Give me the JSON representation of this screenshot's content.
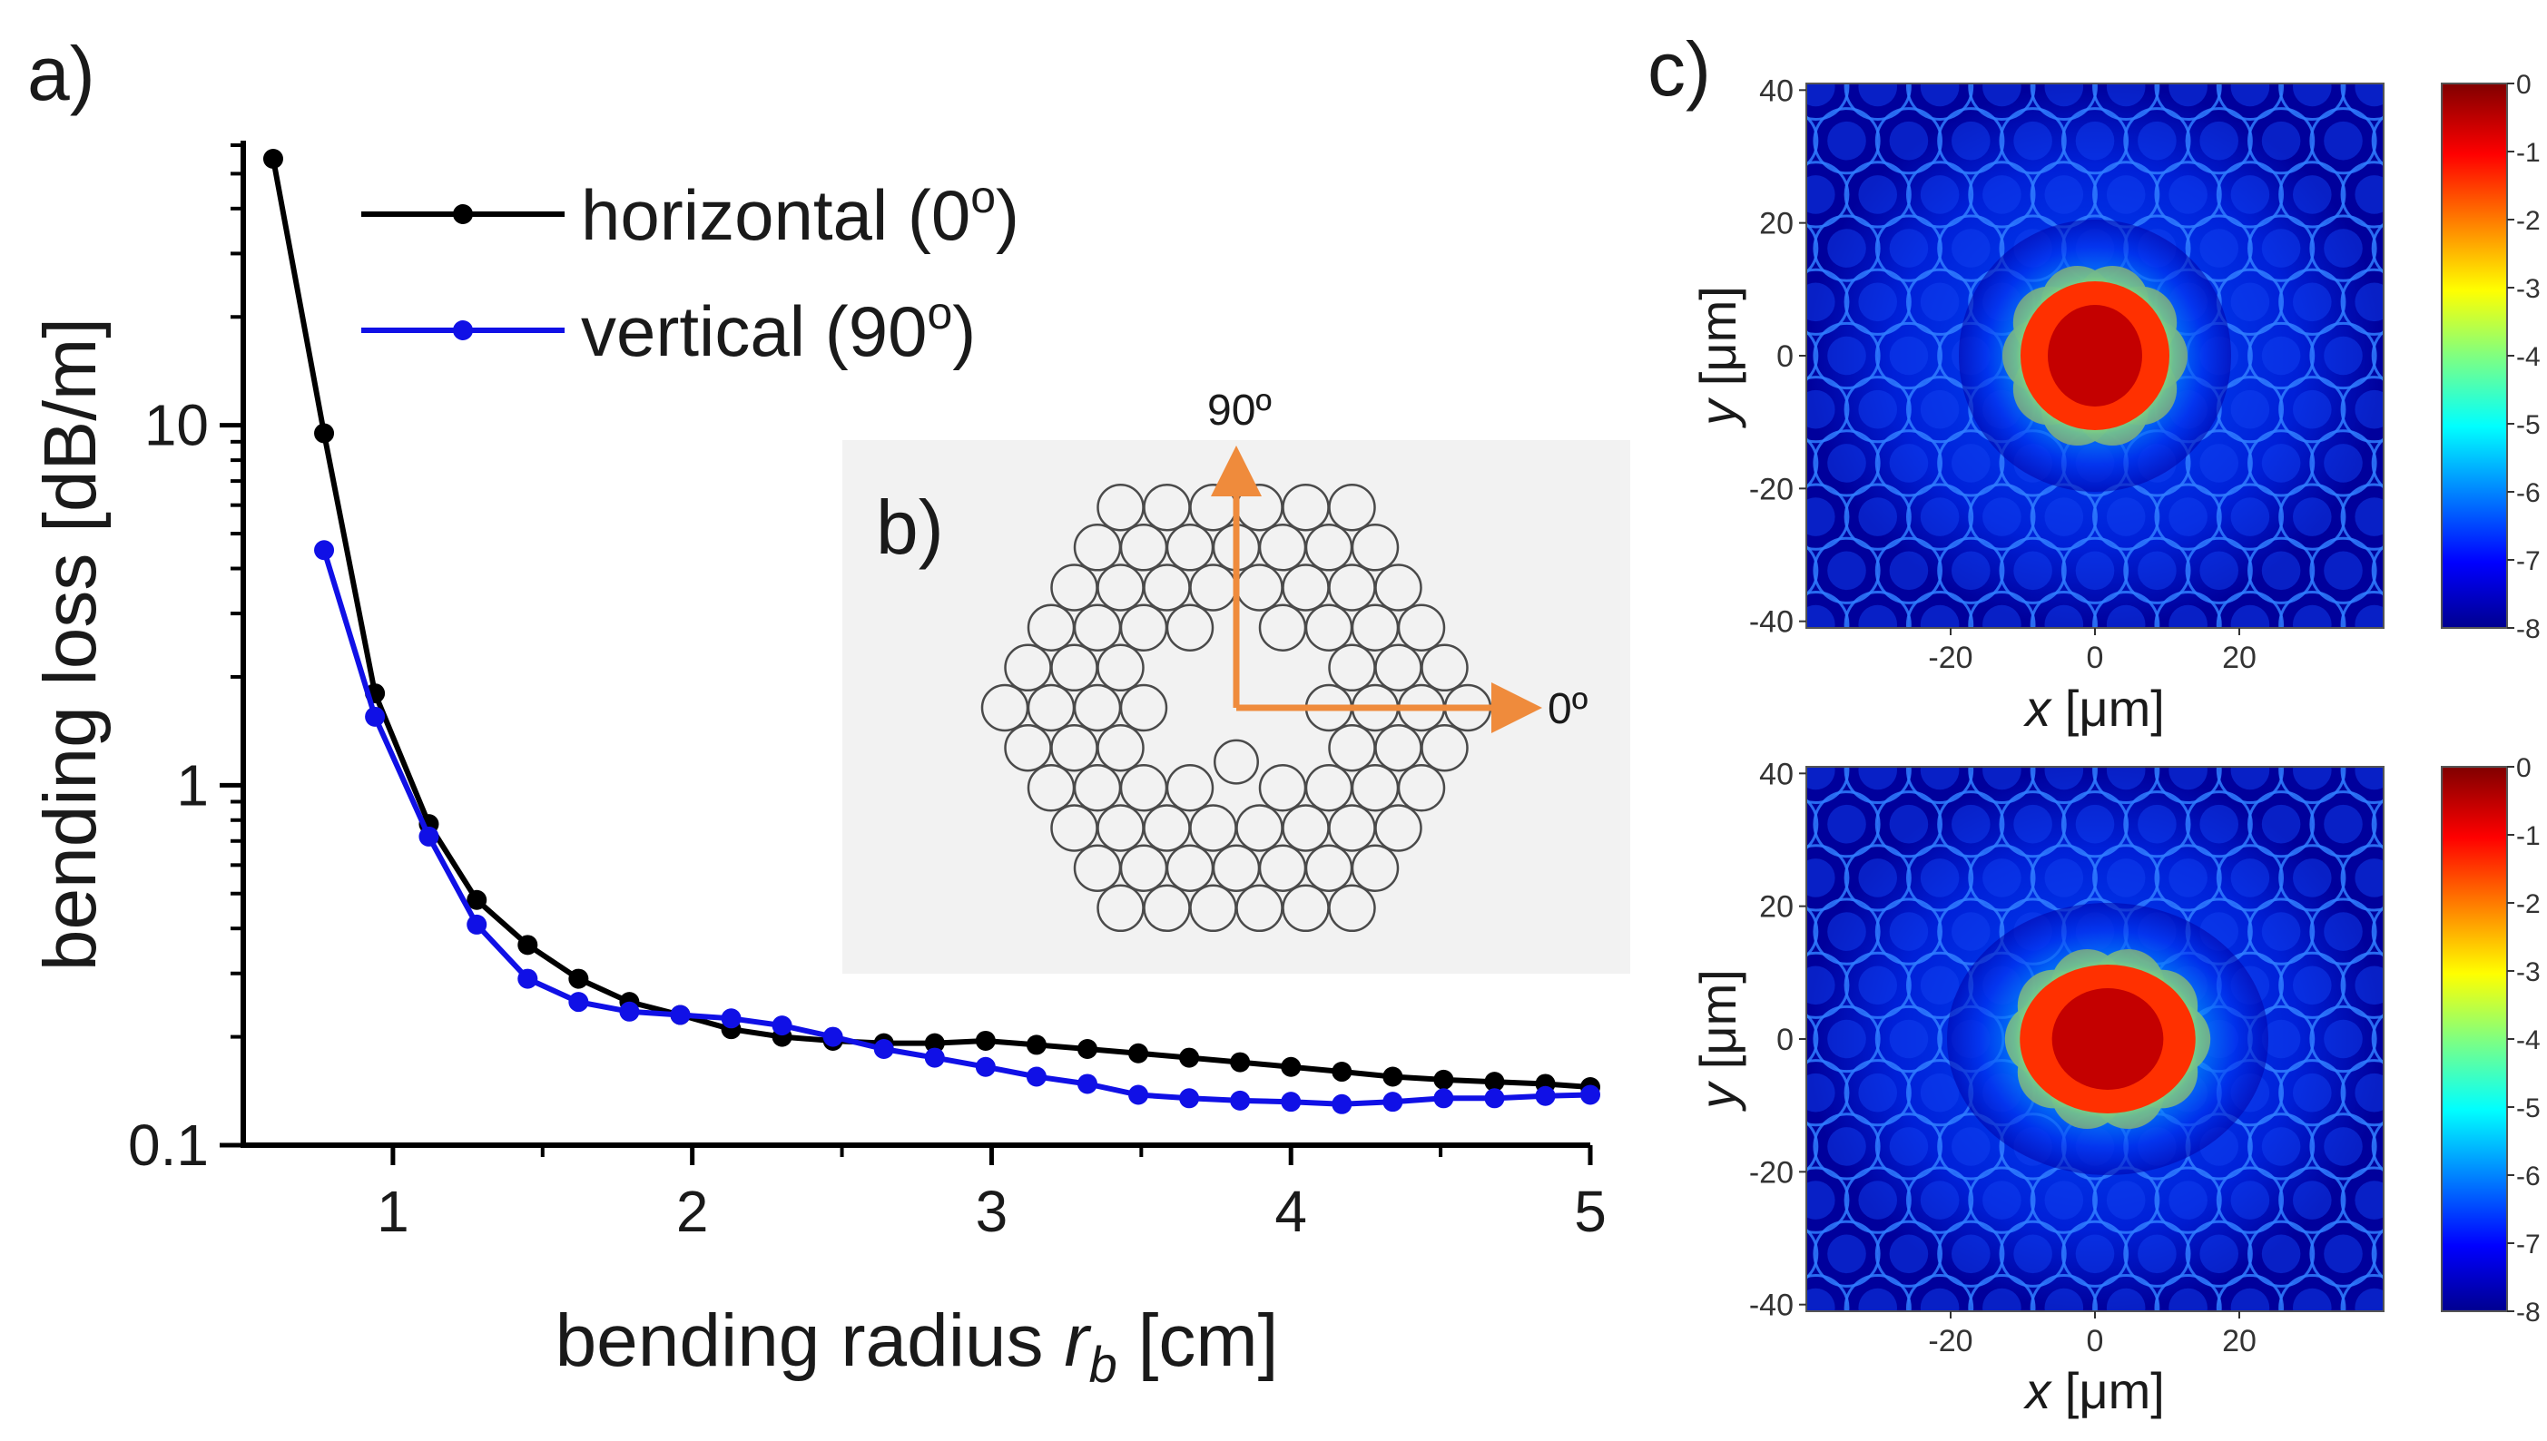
{
  "figure": {
    "panel_a_label": "a)",
    "panel_b_label": "b)",
    "panel_c_label": "c)",
    "inset_label_90": "90º",
    "inset_label_0": "0º",
    "arrow_color": "#ef8b3c",
    "map_top_xlabel": "μm]",
    "map_top_ylabel": "μm]",
    "map_bottom_xlabel": "μm]",
    "map_bottom_ylabel": "μm]",
    "map_x_symbol": "x",
    "map_y_symbol": "y"
  },
  "chart_data": [
    {
      "id": "bending-loss",
      "type": "line",
      "title": "",
      "xlabel": "bending radius r_b [cm]",
      "xlabel_main": "bending radius ",
      "xlabel_symbol": "r",
      "xlabel_sub": "b",
      "xlabel_unit": " [cm]",
      "ylabel": "bending loss [dB/m]",
      "xlim": [
        0.5,
        5.0
      ],
      "ylim": [
        0.1,
        60
      ],
      "yscale": "log",
      "xticks": [
        1,
        2,
        3,
        4,
        5
      ],
      "yticks": [
        {
          "value": 0.1,
          "label": "0.1"
        },
        {
          "value": 1,
          "label": "1"
        },
        {
          "value": 10,
          "label": "10"
        }
      ],
      "legend_position": "top-left",
      "series": [
        {
          "name": "horizontal (0",
          "name_suffix": "o",
          "name_close": ")",
          "color": "#000000",
          "x": [
            0.6,
            0.77,
            0.94,
            1.12,
            1.28,
            1.45,
            1.62,
            1.79,
            1.96,
            2.13,
            2.3,
            2.47,
            2.64,
            2.81,
            2.98,
            3.15,
            3.32,
            3.49,
            3.66,
            3.83,
            4.0,
            4.17,
            4.34,
            4.51,
            4.68,
            4.85,
            5.0
          ],
          "values": [
            55,
            9.5,
            1.8,
            0.78,
            0.48,
            0.36,
            0.29,
            0.25,
            0.23,
            0.21,
            0.2,
            0.195,
            0.192,
            0.192,
            0.195,
            0.19,
            0.185,
            0.18,
            0.175,
            0.17,
            0.165,
            0.16,
            0.155,
            0.152,
            0.15,
            0.148,
            0.145
          ]
        },
        {
          "name": "vertical (90",
          "name_suffix": "o",
          "name_close": ")",
          "color": "#1010e6",
          "x": [
            0.77,
            0.94,
            1.12,
            1.28,
            1.45,
            1.62,
            1.79,
            1.96,
            2.13,
            2.3,
            2.47,
            2.64,
            2.81,
            2.98,
            3.15,
            3.32,
            3.49,
            3.66,
            3.83,
            4.0,
            4.17,
            4.34,
            4.51,
            4.68,
            4.85,
            5.0
          ],
          "values": [
            4.5,
            1.55,
            0.72,
            0.41,
            0.29,
            0.25,
            0.235,
            0.23,
            0.225,
            0.215,
            0.2,
            0.185,
            0.175,
            0.165,
            0.155,
            0.148,
            0.138,
            0.135,
            0.133,
            0.132,
            0.13,
            0.132,
            0.135,
            0.135,
            0.137,
            0.138
          ]
        }
      ]
    },
    {
      "id": "mode-field-horizontal",
      "type": "heatmap",
      "title": "",
      "xlabel": "x [μm]",
      "ylabel": "y [μm]",
      "xticks": [
        "-20",
        "0",
        "20"
      ],
      "yticks": [
        "40",
        "20",
        "0",
        "-20",
        "-40"
      ],
      "colorbar_ticks": [
        "0",
        "-1",
        "-2",
        "-3",
        "-4",
        "-5",
        "-6",
        "-7",
        "-8"
      ],
      "colorbar_range": [
        -8,
        0
      ]
    },
    {
      "id": "mode-field-vertical",
      "type": "heatmap",
      "title": "",
      "xlabel": "x [μm]",
      "ylabel": "y [μm]",
      "xticks": [
        "-20",
        "0",
        "20"
      ],
      "yticks": [
        "40",
        "20",
        "0",
        "-20",
        "-40"
      ],
      "colorbar_ticks": [
        "0",
        "-1",
        "-2",
        "-3",
        "-4",
        "-5",
        "-6",
        "-7",
        "-8"
      ],
      "colorbar_range": [
        -8,
        0
      ]
    }
  ]
}
